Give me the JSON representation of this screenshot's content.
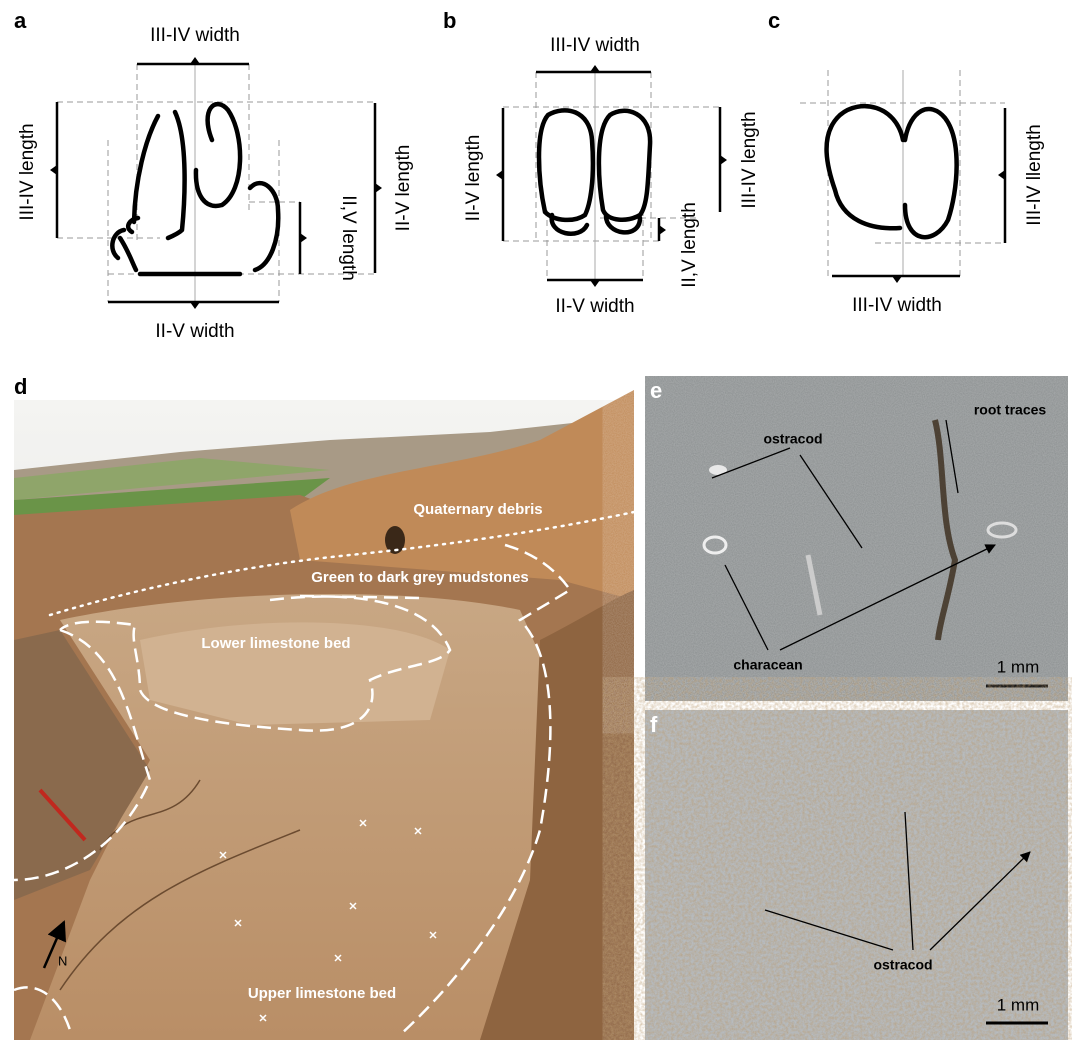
{
  "panels": [
    {
      "label": "a",
      "measurements": [
        "III-IV width",
        "III-IV length",
        "II,V length",
        "II-V length",
        "II-V width"
      ]
    },
    {
      "label": "b",
      "measurements": [
        "III-IV width",
        "II-V length",
        "III-IV length",
        "II,V length",
        "II-V width"
      ]
    },
    {
      "label": "c",
      "measurements": [
        "III-IV llength",
        "III-IV width"
      ]
    },
    {
      "label": "d",
      "annotations": [
        "Quaternary debris",
        "Green to dark grey mudstones",
        "Lower limestone bed",
        "Upper limestone bed",
        "N"
      ]
    },
    {
      "label": "e",
      "annotations": [
        "ostracod",
        "root traces",
        "characean"
      ],
      "scale": "1 mm"
    },
    {
      "label": "f",
      "annotations": [
        "ostracod"
      ],
      "scale": "1 mm"
    }
  ]
}
